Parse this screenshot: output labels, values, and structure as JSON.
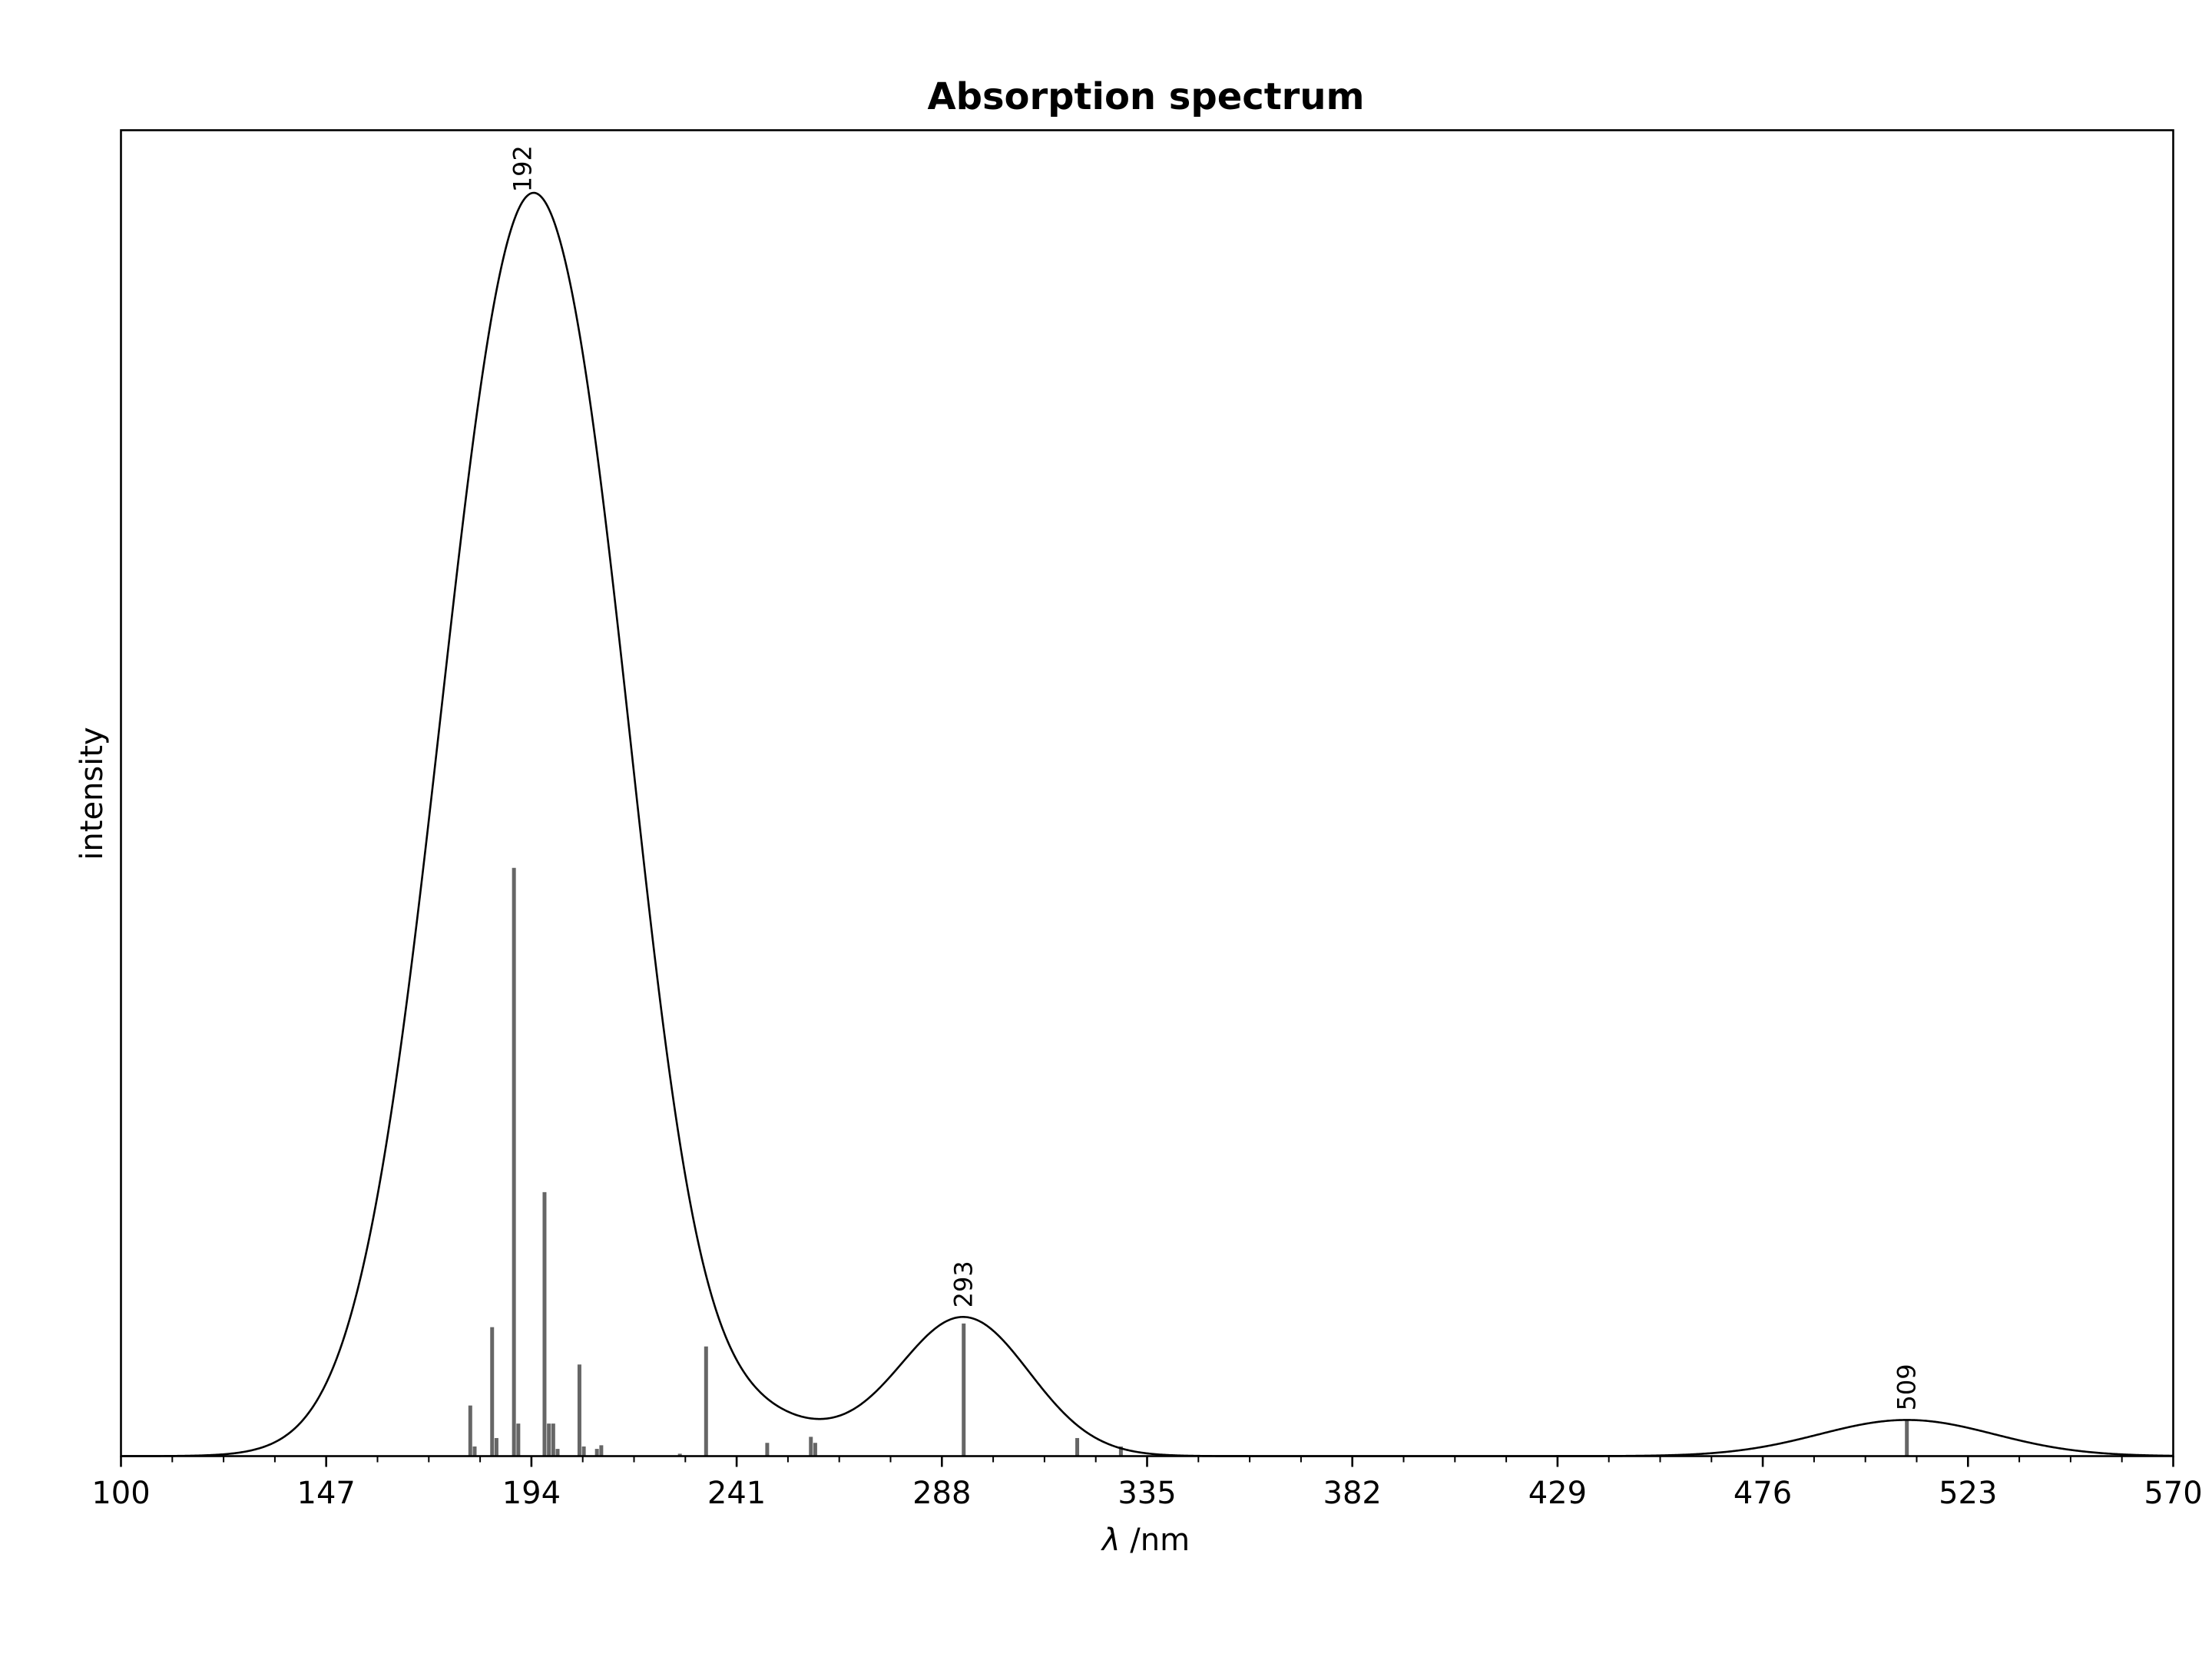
{
  "chart_data": {
    "type": "line",
    "title": "Absorption spectrum",
    "xlabel_symbol": "λ",
    "xlabel_unit": " /nm",
    "ylabel": "intensity",
    "xlim": [
      100,
      570
    ],
    "ylim": [
      0,
      1.1
    ],
    "xticks": [
      100,
      147,
      194,
      241,
      288,
      335,
      382,
      429,
      476,
      523,
      570
    ],
    "minor_tick_step": 11.75,
    "y_ticks_shown": false,
    "grid": false,
    "line_color": "#000000",
    "stick_color": "#666666",
    "spectrum": {
      "name": "",
      "bands": [
        {
          "center": 192,
          "height": 1.0,
          "width": 19
        },
        {
          "center": 212,
          "height": 0.16,
          "width": 12
        },
        {
          "center": 240,
          "height": 0.035,
          "width": 18
        },
        {
          "center": 293,
          "height": 0.115,
          "width": 15
        },
        {
          "center": 509,
          "height": 0.03,
          "width": 20
        }
      ]
    },
    "sticks": {
      "x": [
        180,
        181,
        185,
        186,
        190,
        191,
        197,
        198,
        199,
        200,
        205,
        206,
        209,
        210,
        228,
        234,
        248,
        258,
        259,
        293,
        319,
        329,
        509
      ],
      "y": [
        0.042,
        0.008,
        0.107,
        0.015,
        0.488,
        0.027,
        0.219,
        0.027,
        0.027,
        0.006,
        0.076,
        0.008,
        0.006,
        0.009,
        0.002,
        0.091,
        0.011,
        0.016,
        0.011,
        0.11,
        0.015,
        0.008,
        0.03
      ]
    },
    "peak_annotations": [
      {
        "x": 192,
        "label": "192"
      },
      {
        "x": 293,
        "label": "293"
      },
      {
        "x": 509,
        "label": "509"
      }
    ]
  }
}
